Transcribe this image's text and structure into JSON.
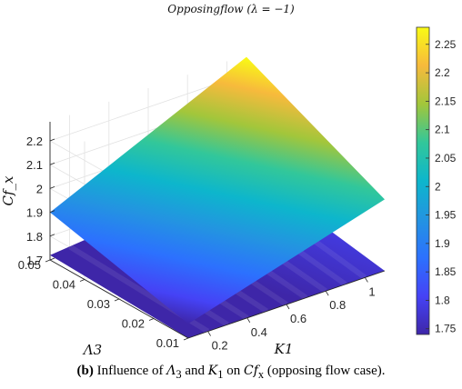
{
  "chart_data": {
    "type": "surface",
    "title": "Opposingflow (λ = −1)",
    "xlabel": "K1",
    "ylabel": "Λ3",
    "zlabel": "Cf_x",
    "x_ticks": [
      "0.2",
      "0.4",
      "0.6",
      "0.8",
      "1"
    ],
    "y_ticks": [
      "0.01",
      "0.02",
      "0.03",
      "0.04",
      "0.05"
    ],
    "z_ticks": [
      "1.7",
      "1.8",
      "1.9",
      "2",
      "2.1",
      "2.2"
    ],
    "xlim": [
      0.1,
      1.1
    ],
    "ylim": [
      0.01,
      0.05
    ],
    "zlim": [
      1.7,
      2.28
    ],
    "colorbar": {
      "ticks": [
        "1.75",
        "1.8",
        "1.85",
        "1.9",
        "1.95",
        "2",
        "2.05",
        "2.1",
        "2.15",
        "2.2",
        "2.25"
      ],
      "range": [
        1.74,
        2.28
      ],
      "colormap": "parula"
    },
    "surfaces": [
      {
        "name": "upper",
        "corners": [
          {
            "K1": 0.1,
            "Lambda3": 0.01,
            "Cf": 1.76
          },
          {
            "K1": 1.1,
            "Lambda3": 0.01,
            "Cf": 2.0
          },
          {
            "K1": 1.1,
            "Lambda3": 0.05,
            "Cf": 2.27
          },
          {
            "K1": 0.1,
            "Lambda3": 0.05,
            "Cf": 1.9
          }
        ]
      },
      {
        "name": "lower",
        "corners": [
          {
            "K1": 0.1,
            "Lambda3": 0.01,
            "Cf": 1.7
          },
          {
            "K1": 1.1,
            "Lambda3": 0.01,
            "Cf": 1.7
          },
          {
            "K1": 1.1,
            "Lambda3": 0.05,
            "Cf": 1.8
          },
          {
            "K1": 0.1,
            "Lambda3": 0.05,
            "Cf": 1.72
          }
        ]
      }
    ]
  },
  "caption": {
    "label": "(b)",
    "pre": "Influence of",
    "sym1": "Λ",
    "sub1": "3",
    "and": "and",
    "sym2": "K",
    "sub2": "1",
    "on": "on",
    "sym3": "Cf",
    "sub3": "x",
    "post": "(opposing flow case)."
  }
}
